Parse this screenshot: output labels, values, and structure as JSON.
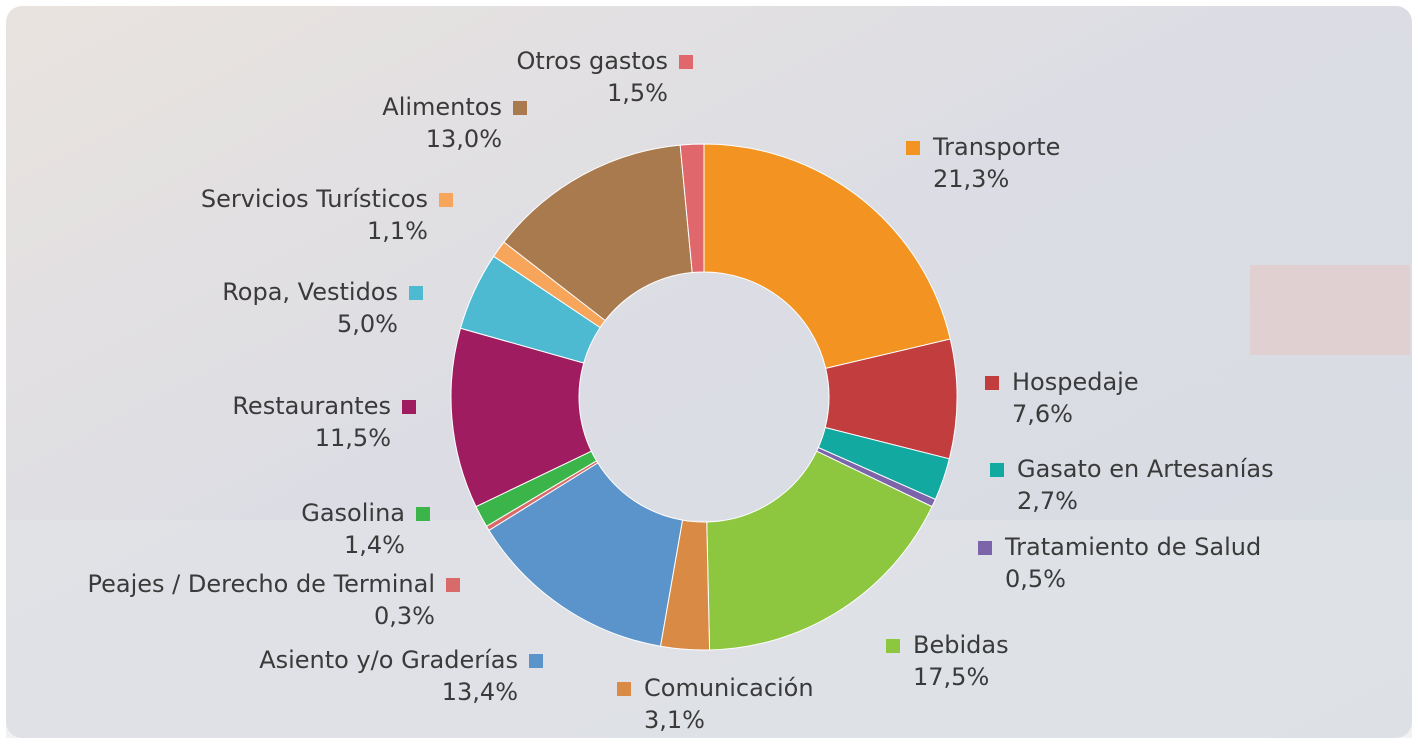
{
  "chart_data": {
    "type": "donut",
    "categories": [
      "Transporte",
      "Hospedaje",
      "Gasato en Artesanías",
      "Tratamiento de Salud",
      "Bebidas",
      "Comunicación",
      "Asiento y/o Graderías",
      "Peajes / Derecho de Terminal",
      "Gasolina",
      "Restaurantes",
      "Ropa, Vestidos",
      "Servicios Turísticos",
      "Alimentos",
      "Otros gastos"
    ],
    "values": [
      21.3,
      7.6,
      2.7,
      0.5,
      17.5,
      3.1,
      13.4,
      0.3,
      1.4,
      11.5,
      5.0,
      1.1,
      13.0,
      1.5
    ],
    "value_labels": [
      "21,3%",
      "7,6%",
      "2,7%",
      "0,5%",
      "17,5%",
      "3,1%",
      "13,4%",
      "0,3%",
      "1,4%",
      "11,5%",
      "5,0%",
      "1,1%",
      "13,0%",
      "1,5%"
    ],
    "colors": [
      "#f39322",
      "#c13d3e",
      "#12a9a1",
      "#7b64a9",
      "#8dc63f",
      "#d98b45",
      "#5b93cb",
      "#d96a6a",
      "#3bb54a",
      "#a01c61",
      "#4dbad2",
      "#f7a55b",
      "#a87a4d",
      "#e0676b"
    ]
  }
}
